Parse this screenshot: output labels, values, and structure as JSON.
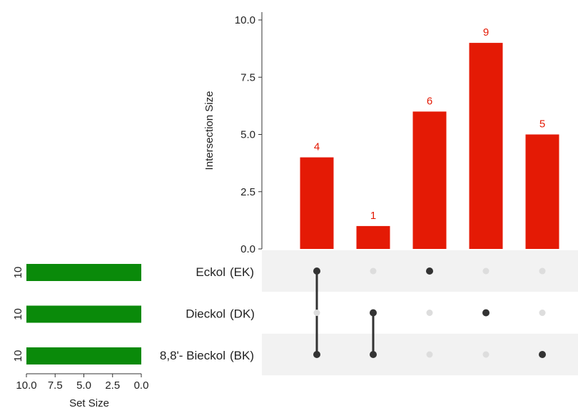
{
  "colors": {
    "bar": "#e41a05",
    "bar_label": "#e41a05",
    "set_bar": "#0a8a0a",
    "dot_active": "#333333",
    "dot_inactive": "#dddddd",
    "band": "#f2f2f2",
    "axis": "#333333",
    "text": "#222222"
  },
  "chart_data": {
    "type": "bar",
    "subtype": "upset",
    "ylabel": "Intersection Size",
    "ylim": [
      0,
      10
    ],
    "yticks": [
      "0.0",
      "2.5",
      "5.0",
      "7.5",
      "10.0"
    ],
    "intersections": [
      {
        "value": 4,
        "label": "4",
        "members": [
          0,
          2
        ]
      },
      {
        "value": 1,
        "label": "1",
        "members": [
          1,
          2
        ]
      },
      {
        "value": 6,
        "label": "6",
        "members": [
          0
        ]
      },
      {
        "value": 9,
        "label": "9",
        "members": [
          1
        ]
      },
      {
        "value": 5,
        "label": "5",
        "members": [
          2
        ]
      }
    ],
    "sets": [
      {
        "name": "Eckol",
        "abbr": "(EK)",
        "size": 10,
        "size_label": "10"
      },
      {
        "name": "Dieckol",
        "abbr": "(DK)",
        "size": 10,
        "size_label": "10"
      },
      {
        "name": "8,8'- Bieckol",
        "abbr": "(BK)",
        "size": 10,
        "size_label": "10"
      }
    ],
    "set_size": {
      "xlabel": "Set Size",
      "xlim": [
        10,
        0
      ],
      "xticks": [
        "10.0",
        "7.5",
        "5.0",
        "2.5",
        "0.0"
      ]
    }
  }
}
